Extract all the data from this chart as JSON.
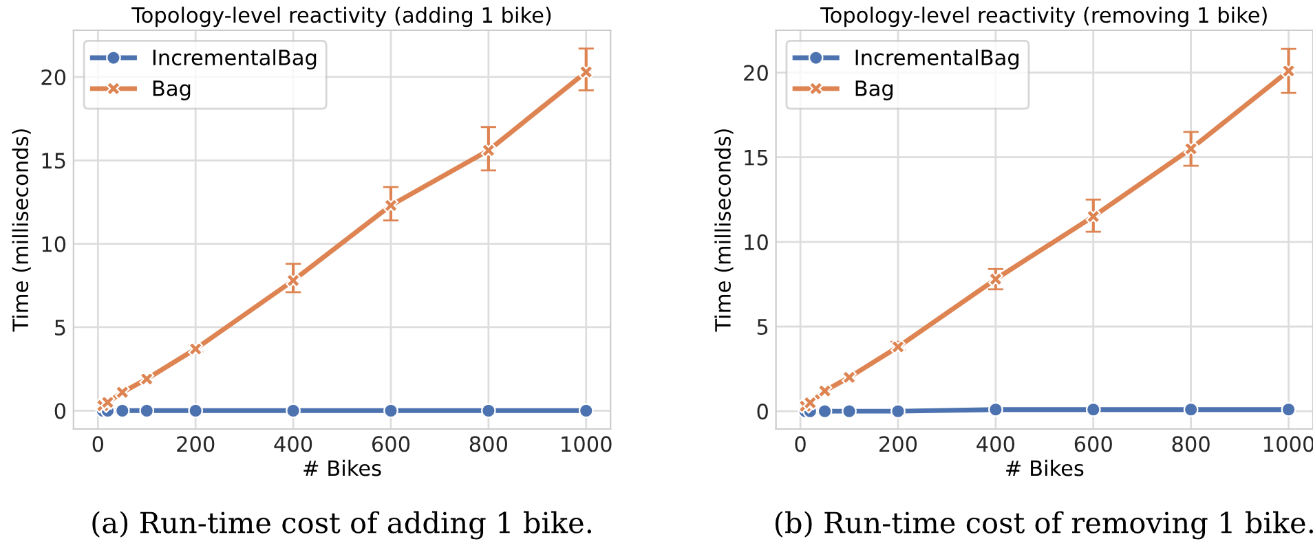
{
  "chart_data": [
    {
      "type": "line",
      "title": "Topology-level reactivity (adding 1 bike)",
      "xlabel": "# Bikes",
      "ylabel": "Time (milliseconds)",
      "x": [
        10,
        20,
        50,
        100,
        200,
        400,
        600,
        800,
        1000
      ],
      "xlim": [
        -50,
        1050
      ],
      "xticks": [
        0,
        200,
        400,
        600,
        800,
        1000
      ],
      "ylim": [
        -1.1,
        22.8
      ],
      "yticks": [
        0,
        5,
        10,
        15,
        20
      ],
      "grid": true,
      "legend": "top left",
      "line_style": "solid",
      "annotations": [
        "(a) Run-time cost of adding 1 bike."
      ],
      "series": [
        {
          "name": "IncrementalBag",
          "color": "#4c72b0",
          "marker": "circle",
          "values": [
            0.0,
            0.0,
            0.0,
            0.0,
            0.0,
            0.0,
            0.0,
            0.0,
            0.0
          ]
        },
        {
          "name": "Bag",
          "color": "#dd8452",
          "marker": "cross",
          "values": [
            0.3,
            0.5,
            1.1,
            1.9,
            3.7,
            7.8,
            12.3,
            15.6,
            20.3
          ],
          "errors": [
            null,
            null,
            null,
            null,
            [
              3.5,
              3.9
            ],
            [
              7.1,
              8.8
            ],
            [
              11.4,
              13.4
            ],
            [
              14.4,
              17.0
            ],
            [
              19.2,
              21.7
            ]
          ]
        }
      ]
    },
    {
      "type": "line",
      "title": "Topology-level reactivity (removing 1 bike)",
      "xlabel": "# Bikes",
      "ylabel": "Time (milliseconds)",
      "x": [
        10,
        20,
        50,
        100,
        200,
        400,
        600,
        800,
        1000
      ],
      "xlim": [
        -50,
        1050
      ],
      "xticks": [
        0,
        200,
        400,
        600,
        800,
        1000
      ],
      "ylim": [
        -1.05,
        22.5
      ],
      "yticks": [
        0,
        5,
        10,
        15,
        20
      ],
      "grid": true,
      "legend": "top left",
      "line_style": "solid",
      "annotations": [
        "(b) Run-time cost of removing 1 bike."
      ],
      "series": [
        {
          "name": "IncrementalBag",
          "color": "#4c72b0",
          "marker": "circle",
          "values": [
            0.0,
            0.0,
            0.0,
            0.0,
            0.0,
            0.1,
            0.1,
            0.1,
            0.1
          ]
        },
        {
          "name": "Bag",
          "color": "#dd8452",
          "marker": "cross",
          "values": [
            0.3,
            0.5,
            1.2,
            2.0,
            3.8,
            7.8,
            11.5,
            15.5,
            20.1
          ],
          "errors": [
            null,
            null,
            null,
            null,
            [
              3.6,
              4.1
            ],
            [
              7.2,
              8.4
            ],
            [
              10.6,
              12.5
            ],
            [
              14.5,
              16.5
            ],
            [
              18.8,
              21.4
            ]
          ]
        }
      ]
    }
  ]
}
